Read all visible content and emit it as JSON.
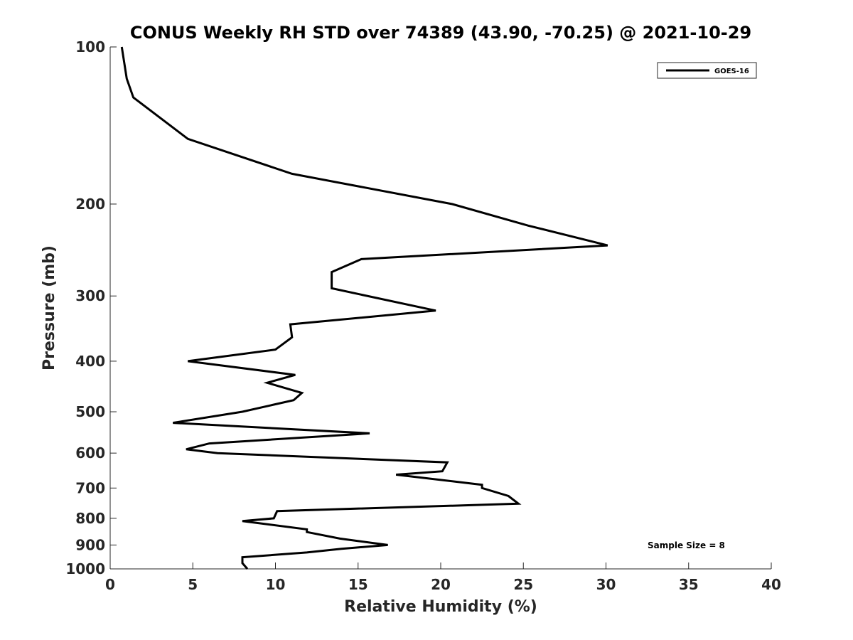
{
  "chart_data": {
    "type": "line",
    "title": "CONUS Weekly RH STD over 74389 (43.90, -70.25) @ 2021-10-29",
    "xlabel": "Relative Humidity (%)",
    "ylabel": "Pressure (mb)",
    "xlim": [
      0,
      40
    ],
    "ylim": [
      100,
      1000
    ],
    "yscale": "log",
    "y_reversed": true,
    "grid": false,
    "legend_position": "top-right",
    "x_ticks": [
      "0",
      "5",
      "10",
      "15",
      "20",
      "25",
      "30",
      "35",
      "40"
    ],
    "y_ticks": [
      "100",
      "200",
      "300",
      "400",
      "500",
      "600",
      "700",
      "800",
      "900",
      "1000"
    ],
    "series": [
      {
        "name": "GOES-16",
        "color": "#000000",
        "x": [
          0.7,
          1.0,
          1.4,
          4.7,
          11.0,
          20.7,
          25.3,
          30.1,
          15.2,
          13.4,
          13.4,
          19.7,
          10.9,
          11.0,
          10.0,
          4.7,
          11.2,
          9.5,
          11.6,
          11.1,
          8.0,
          3.8,
          15.7,
          6.0,
          4.6,
          6.5,
          20.4,
          20.1,
          17.3,
          22.5,
          22.5,
          24.1,
          24.7,
          10.1,
          9.9,
          8.0,
          11.9,
          11.9,
          13.9,
          16.8,
          14.0,
          11.9,
          8.0,
          8.0,
          8.3
        ],
        "y": [
          100,
          115,
          125,
          150,
          175,
          200,
          220,
          240,
          255,
          270,
          290,
          320,
          340,
          360,
          380,
          400,
          425,
          440,
          460,
          475,
          500,
          525,
          550,
          575,
          590,
          600,
          625,
          650,
          660,
          690,
          700,
          725,
          750,
          775,
          800,
          810,
          840,
          850,
          875,
          900,
          915,
          930,
          950,
          975,
          1000
        ]
      }
    ],
    "annotations": [
      "Sample Size = 8"
    ]
  }
}
